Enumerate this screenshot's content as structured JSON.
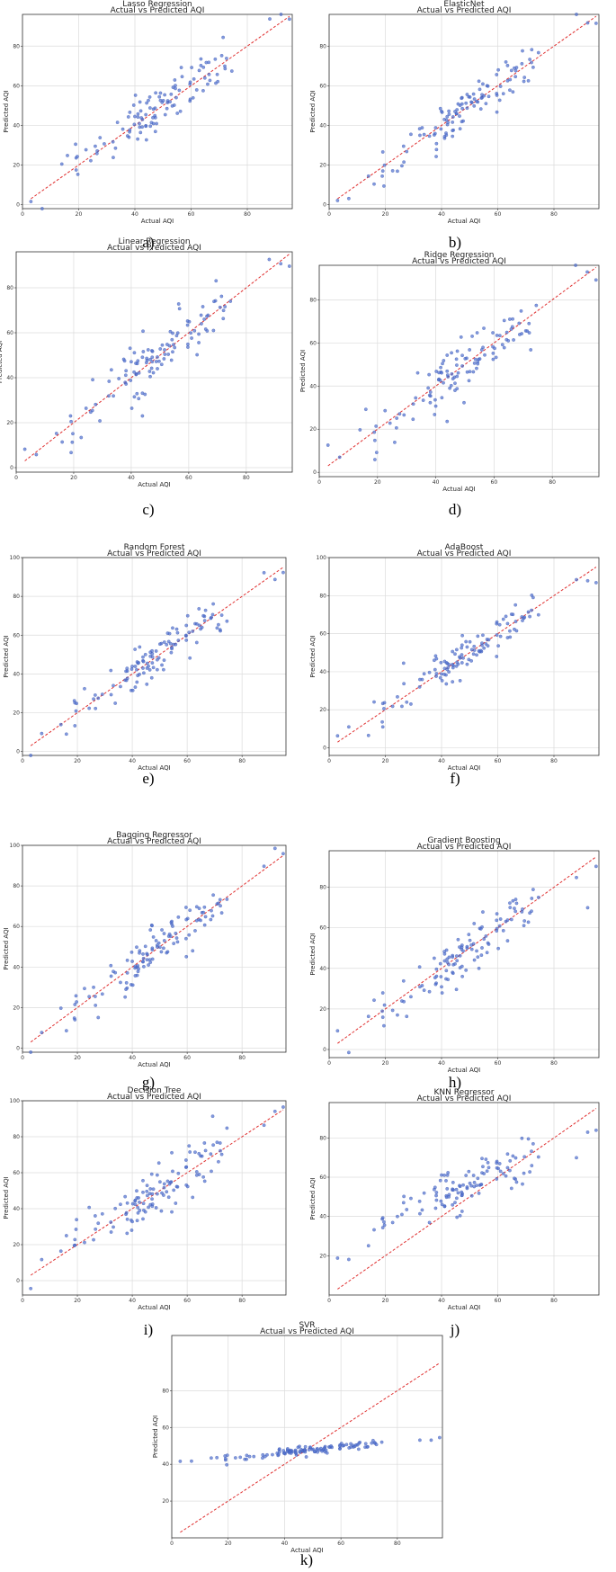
{
  "figure": {
    "subtitle": "Actual vs Predicted AQI",
    "xlabel": "Actual AQI",
    "ylabel": "Predicted AQI",
    "point_color": "#4f6fcf",
    "ideal_line_color": "#e03030",
    "grid": true
  },
  "chart_data": [
    {
      "type": "scatter",
      "title": "Lasso Regression",
      "caption": "a)",
      "xlim": [
        0,
        96
      ],
      "ylim": [
        -2,
        96
      ],
      "xticks": [
        0,
        20,
        40,
        60,
        80
      ],
      "yticks": [
        0,
        20,
        40,
        60,
        80
      ]
    },
    {
      "type": "scatter",
      "title": "ElasticNet",
      "caption": "b)",
      "xlim": [
        0,
        96
      ],
      "ylim": [
        -2,
        96
      ],
      "xticks": [
        0,
        20,
        40,
        60,
        80
      ],
      "yticks": [
        0,
        20,
        40,
        60,
        80
      ]
    },
    {
      "type": "scatter",
      "title": "Linear Regression",
      "caption": "c)",
      "xlim": [
        0,
        96
      ],
      "ylim": [
        -2,
        96
      ],
      "xticks": [
        0,
        20,
        40,
        60,
        80
      ],
      "yticks": [
        0,
        20,
        40,
        60,
        80
      ]
    },
    {
      "type": "scatter",
      "title": "Ridge Regression",
      "caption": "d)",
      "xlim": [
        0,
        96
      ],
      "ylim": [
        -2,
        96
      ],
      "xticks": [
        0,
        20,
        40,
        60,
        80
      ],
      "yticks": [
        0,
        20,
        40,
        60,
        80
      ]
    },
    {
      "type": "scatter",
      "title": "Random Forest",
      "caption": "e)",
      "xlim": [
        0,
        96
      ],
      "ylim": [
        -2,
        100
      ],
      "xticks": [
        0,
        20,
        40,
        60,
        80
      ],
      "yticks": [
        0,
        20,
        40,
        60,
        80,
        100
      ]
    },
    {
      "type": "scatter",
      "title": "AdaBoost",
      "caption": "f)",
      "xlim": [
        0,
        96
      ],
      "ylim": [
        -4,
        100
      ],
      "xticks": [
        0,
        20,
        40,
        60,
        80
      ],
      "yticks": [
        0,
        20,
        40,
        60,
        80,
        100
      ]
    },
    {
      "type": "scatter",
      "title": "Bagging Regressor",
      "caption": "g)",
      "xlim": [
        0,
        96
      ],
      "ylim": [
        -2,
        100
      ],
      "xticks": [
        0,
        20,
        40,
        60,
        80
      ],
      "yticks": [
        0,
        20,
        40,
        60,
        80,
        100
      ]
    },
    {
      "type": "scatter",
      "title": "Gradient Boosting",
      "caption": "h)",
      "xlim": [
        0,
        96
      ],
      "ylim": [
        -4,
        98
      ],
      "xticks": [
        0,
        20,
        40,
        60,
        80
      ],
      "yticks": [
        0,
        20,
        40,
        60,
        80
      ]
    },
    {
      "type": "scatter",
      "title": "Decision Tree",
      "caption": "i)",
      "xlim": [
        0,
        96
      ],
      "ylim": [
        -8,
        100
      ],
      "xticks": [
        0,
        20,
        40,
        60,
        80
      ],
      "yticks": [
        0,
        20,
        40,
        60,
        80,
        100
      ]
    },
    {
      "type": "scatter",
      "title": "KNN Regressor",
      "caption": "j)",
      "xlim": [
        0,
        96
      ],
      "ylim": [
        0,
        98
      ],
      "xticks": [
        0,
        20,
        40,
        60,
        80
      ],
      "yticks": [
        20,
        40,
        60,
        80
      ]
    },
    {
      "type": "scatter",
      "title": "SVR",
      "caption": "k)",
      "xlim": [
        0,
        96
      ],
      "ylim": [
        0,
        110
      ],
      "xticks": [
        0,
        20,
        40,
        60,
        80
      ],
      "yticks": [
        20,
        40,
        60,
        80
      ]
    }
  ]
}
